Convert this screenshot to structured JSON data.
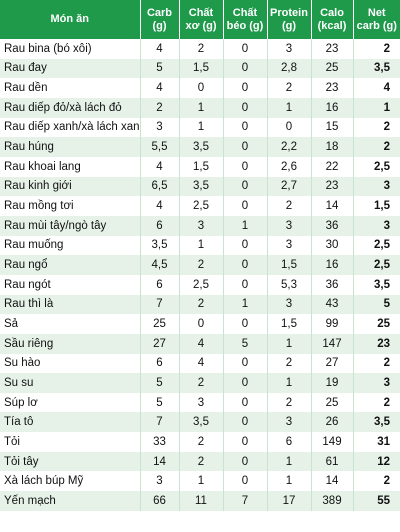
{
  "headers": [
    "Món ăn",
    "Carb (g)",
    "Chất xơ (g)",
    "Chất béo (g)",
    "Protein (g)",
    "Calo (kcal)",
    "Net carb (g)"
  ],
  "rows": [
    [
      "Rau bina (bó xôi)",
      "4",
      "2",
      "0",
      "3",
      "23",
      "2"
    ],
    [
      "Rau đay",
      "5",
      "1,5",
      "0",
      "2,8",
      "25",
      "3,5"
    ],
    [
      "Rau dền",
      "4",
      "0",
      "0",
      "2",
      "23",
      "4"
    ],
    [
      "Rau diếp đỏ/xà lách đỏ",
      "2",
      "1",
      "0",
      "1",
      "16",
      "1"
    ],
    [
      "Rau diếp xanh/xà lách xanh",
      "3",
      "1",
      "0",
      "0",
      "15",
      "2"
    ],
    [
      "Rau húng",
      "5,5",
      "3,5",
      "0",
      "2,2",
      "18",
      "2"
    ],
    [
      "Rau khoai lang",
      "4",
      "1,5",
      "0",
      "2,6",
      "22",
      "2,5"
    ],
    [
      "Rau kinh giới",
      "6,5",
      "3,5",
      "0",
      "2,7",
      "23",
      "3"
    ],
    [
      "Rau mồng tơi",
      "4",
      "2,5",
      "0",
      "2",
      "14",
      "1,5"
    ],
    [
      "Rau mùi tây/ngò tây",
      "6",
      "3",
      "1",
      "3",
      "36",
      "3"
    ],
    [
      "Rau muống",
      "3,5",
      "1",
      "0",
      "3",
      "30",
      "2,5"
    ],
    [
      "Rau ngổ",
      "4,5",
      "2",
      "0",
      "1,5",
      "16",
      "2,5"
    ],
    [
      "Rau ngót",
      "6",
      "2,5",
      "0",
      "5,3",
      "36",
      "3,5"
    ],
    [
      "Rau thì là",
      "7",
      "2",
      "1",
      "3",
      "43",
      "5"
    ],
    [
      "Sả",
      "25",
      "0",
      "0",
      "1,5",
      "99",
      "25"
    ],
    [
      "Sầu riêng",
      "27",
      "4",
      "5",
      "1",
      "147",
      "23"
    ],
    [
      "Su hào",
      "6",
      "4",
      "0",
      "2",
      "27",
      "2"
    ],
    [
      "Su su",
      "5",
      "2",
      "0",
      "1",
      "19",
      "3"
    ],
    [
      "Súp lơ",
      "5",
      "3",
      "0",
      "2",
      "25",
      "2"
    ],
    [
      "Tía tô",
      "7",
      "3,5",
      "0",
      "3",
      "26",
      "3,5"
    ],
    [
      "Tỏi",
      "33",
      "2",
      "0",
      "6",
      "149",
      "31"
    ],
    [
      "Tỏi tây",
      "14",
      "2",
      "0",
      "1",
      "61",
      "12"
    ],
    [
      "Xà lách búp Mỹ",
      "3",
      "1",
      "0",
      "1",
      "14",
      "2"
    ],
    [
      "Yến mạch",
      "66",
      "11",
      "7",
      "17",
      "389",
      "55"
    ]
  ],
  "colors": {
    "header_bg": "#1f9a4b",
    "stripe": "#e6f2e8"
  }
}
